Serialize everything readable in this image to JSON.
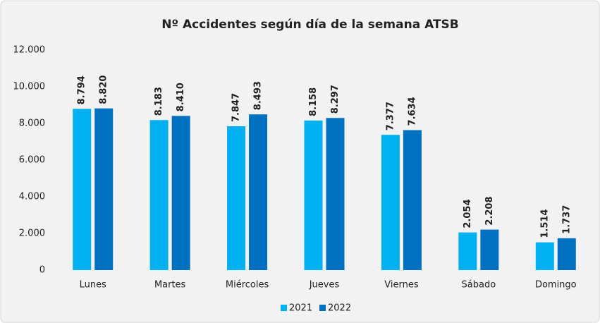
{
  "chart_data": {
    "type": "bar",
    "title": "Nº Accidentes según día de la semana ATSB",
    "categories": [
      "Lunes",
      "Martes",
      "Miércoles",
      "Jueves",
      "Viernes",
      "Sábado",
      "Domingo"
    ],
    "series": [
      {
        "name": "2021",
        "color": "#00b0f0",
        "values": [
          8794,
          8183,
          7847,
          8158,
          7377,
          2054,
          1514
        ],
        "value_labels": [
          "8.794",
          "8.183",
          "7.847",
          "8.158",
          "7.377",
          "2.054",
          "1.514"
        ]
      },
      {
        "name": "2022",
        "color": "#0070c0",
        "values": [
          8820,
          8410,
          8493,
          8297,
          7634,
          2208,
          1737
        ],
        "value_labels": [
          "8.820",
          "8.410",
          "8.493",
          "8.297",
          "7.634",
          "2.208",
          "1.737"
        ]
      }
    ],
    "ylim": [
      0,
      12000
    ],
    "yticks": [
      0,
      {
        "value": 2000,
        "label": "2.000"
      },
      {
        "value": 4000,
        "label": "4.000"
      },
      {
        "value": 6000,
        "label": "6.000"
      },
      {
        "value": 8000,
        "label": "8.000"
      },
      {
        "value": 10000,
        "label": "10.000"
      },
      {
        "value": 12000,
        "label": "12.000"
      }
    ],
    "grid": false,
    "legend": "bottom"
  }
}
